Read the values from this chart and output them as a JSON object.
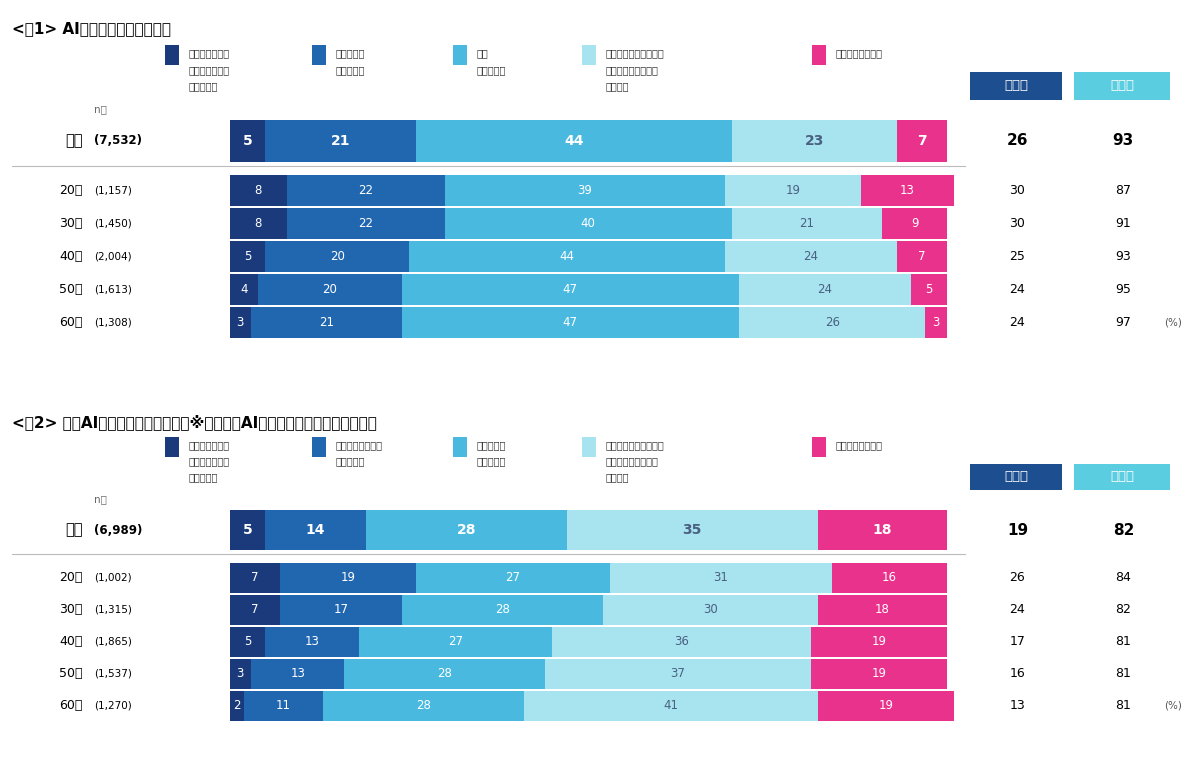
{
  "fig1": {
    "title": "<図1> AIの認知度（単一回答）",
    "categories": [
      "全体",
      "20代",
      "30代",
      "40代",
      "50代",
      "60代"
    ],
    "ns": [
      "(7,532)",
      "(1,157)",
      "(1,450)",
      "(2,004)",
      "(1,613)",
      "(1,308)"
    ],
    "data": [
      [
        5,
        21,
        44,
        23,
        7
      ],
      [
        8,
        22,
        39,
        19,
        13
      ],
      [
        8,
        22,
        40,
        21,
        9
      ],
      [
        5,
        20,
        44,
        24,
        7
      ],
      [
        4,
        20,
        47,
        24,
        5
      ],
      [
        3,
        21,
        47,
        26,
        3
      ]
    ],
    "rikaikai": [
      26,
      30,
      30,
      25,
      24,
      24
    ],
    "ninchikai": [
      93,
      87,
      91,
      93,
      95,
      97
    ],
    "legend_labels": [
      "人に説明できる\nレベルで詳しく\n知っている",
      "それなりに\n知っている",
      "少し\n知っている",
      "聞いたことがあるが、\nどのようなものかは\n知らない",
      "聞いたこともない"
    ],
    "colors": [
      "#1a3a7c",
      "#2167b0",
      "#49b9e0",
      "#a8e4f0",
      "#e8328c"
    ]
  },
  "fig2": {
    "title": "<図2> 生成AIの認知度（単一回答）※ベース：AIについて聞いたことがある人",
    "categories": [
      "全体",
      "20代",
      "30代",
      "40代",
      "50代",
      "60代"
    ],
    "ns": [
      "(6,989)",
      "(1,002)",
      "(1,315)",
      "(1,865)",
      "(1,537)",
      "(1,270)"
    ],
    "data": [
      [
        5,
        14,
        28,
        35,
        18
      ],
      [
        7,
        19,
        27,
        31,
        16
      ],
      [
        7,
        17,
        28,
        30,
        18
      ],
      [
        5,
        13,
        27,
        36,
        19
      ],
      [
        3,
        13,
        28,
        37,
        19
      ],
      [
        2,
        11,
        28,
        41,
        19
      ]
    ],
    "rikaikai": [
      19,
      26,
      24,
      17,
      16,
      13
    ],
    "ninchikai": [
      82,
      84,
      82,
      81,
      81,
      81
    ],
    "legend_labels": [
      "人に説明できる\nレベルで詳しく\n知っている",
      "内容をそれなりに\n知っている",
      "内容を少し\n知っている",
      "聞いたことがあるが、\nどのようなものかは\n知らない",
      "聞いたこともない"
    ],
    "colors": [
      "#1a3a7c",
      "#2167b0",
      "#49b9e0",
      "#a8e4f0",
      "#e8328c"
    ]
  },
  "color_header_blue": "#1d4e8f",
  "color_header_cyan": "#5bcde0",
  "color_pale_cyan": "#a8e4f0",
  "bg_separator": "#1a1a1a",
  "text_pale_cyan": "#4a7a9b"
}
